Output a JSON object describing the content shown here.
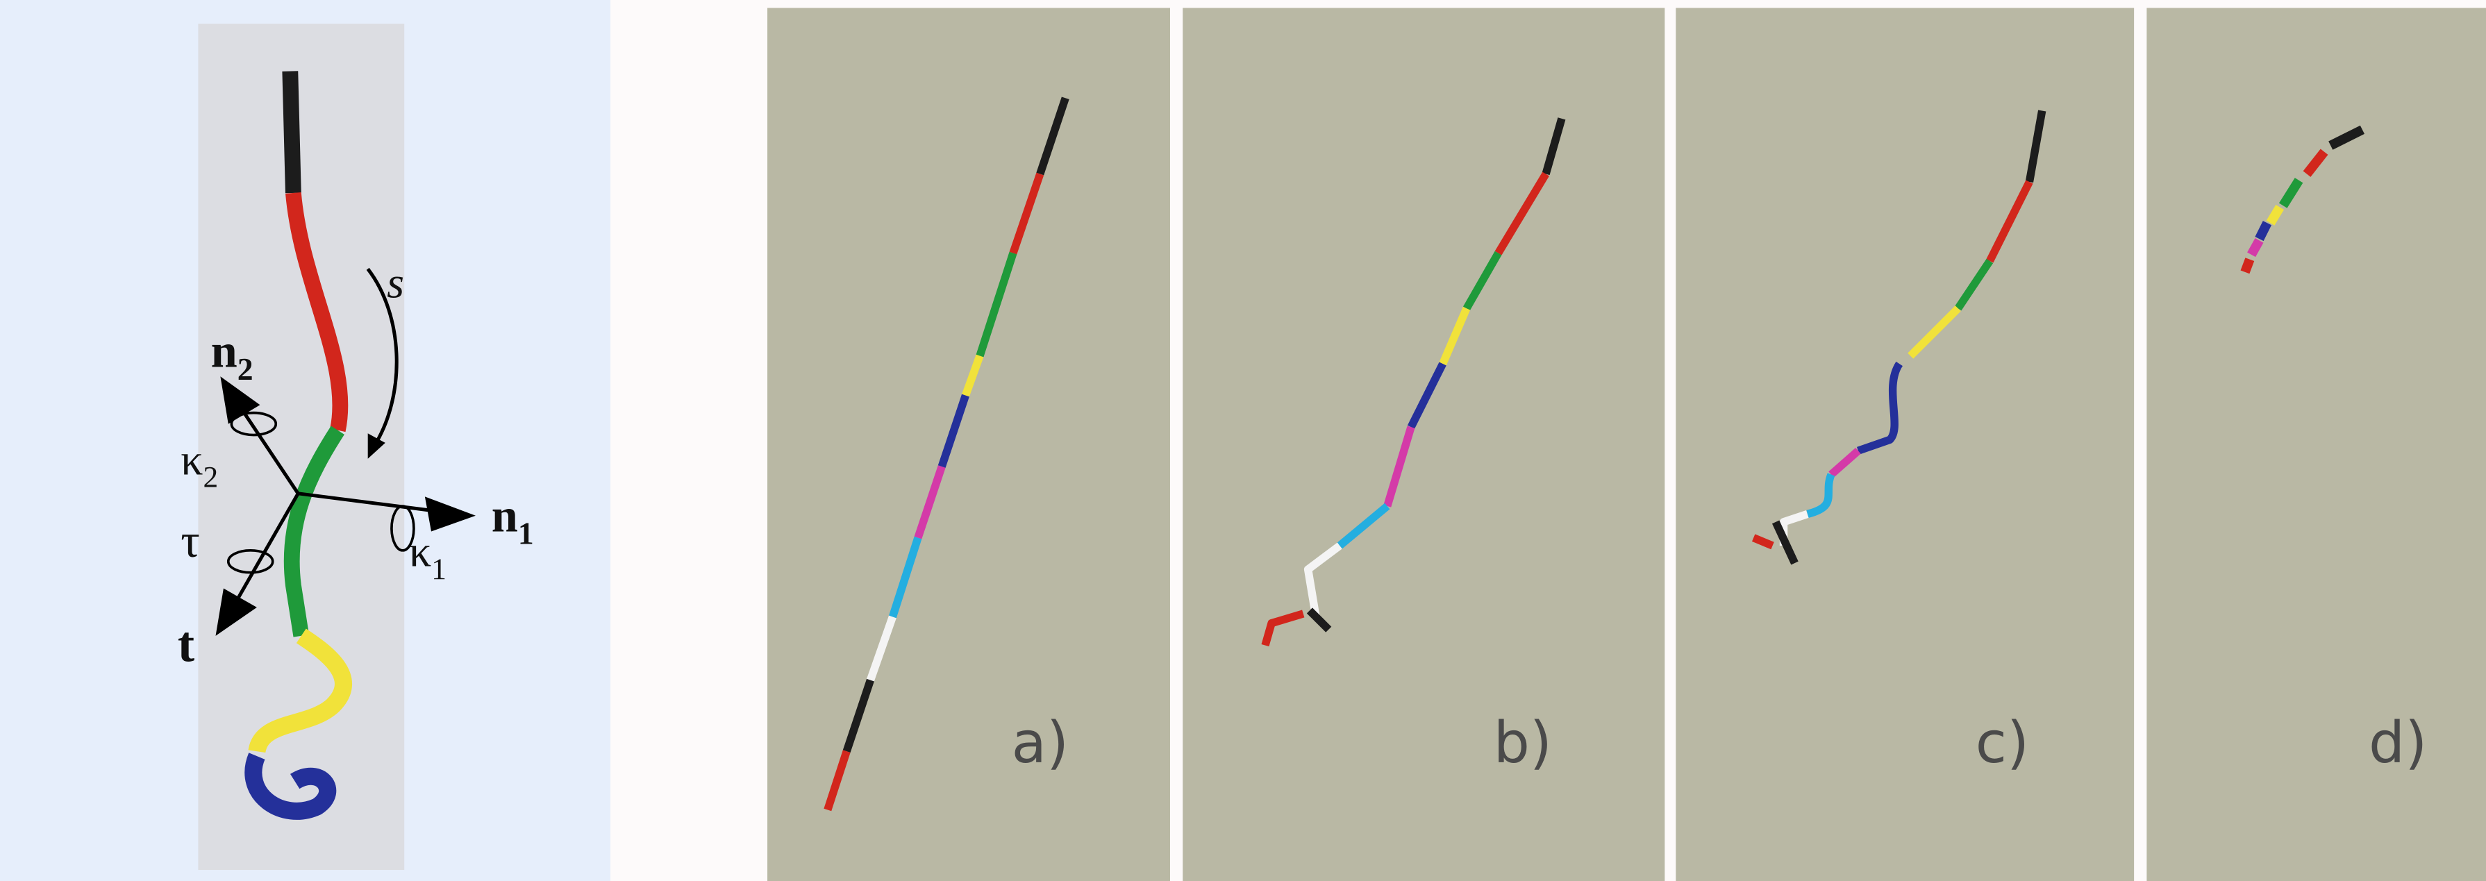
{
  "left_panel": {
    "labels": {
      "n2": {
        "symbol": "n",
        "subscript": "2"
      },
      "s": "s",
      "kappa2": {
        "symbol": "κ",
        "subscript": "2"
      },
      "n1": {
        "symbol": "n",
        "subscript": "1"
      },
      "kappa1": {
        "symbol": "κ",
        "subscript": "1"
      },
      "tau": "τ",
      "t": "t"
    }
  },
  "panels": [
    {
      "label": "a)"
    },
    {
      "label": "b)"
    },
    {
      "label": "c)"
    },
    {
      "label": "d)"
    }
  ]
}
